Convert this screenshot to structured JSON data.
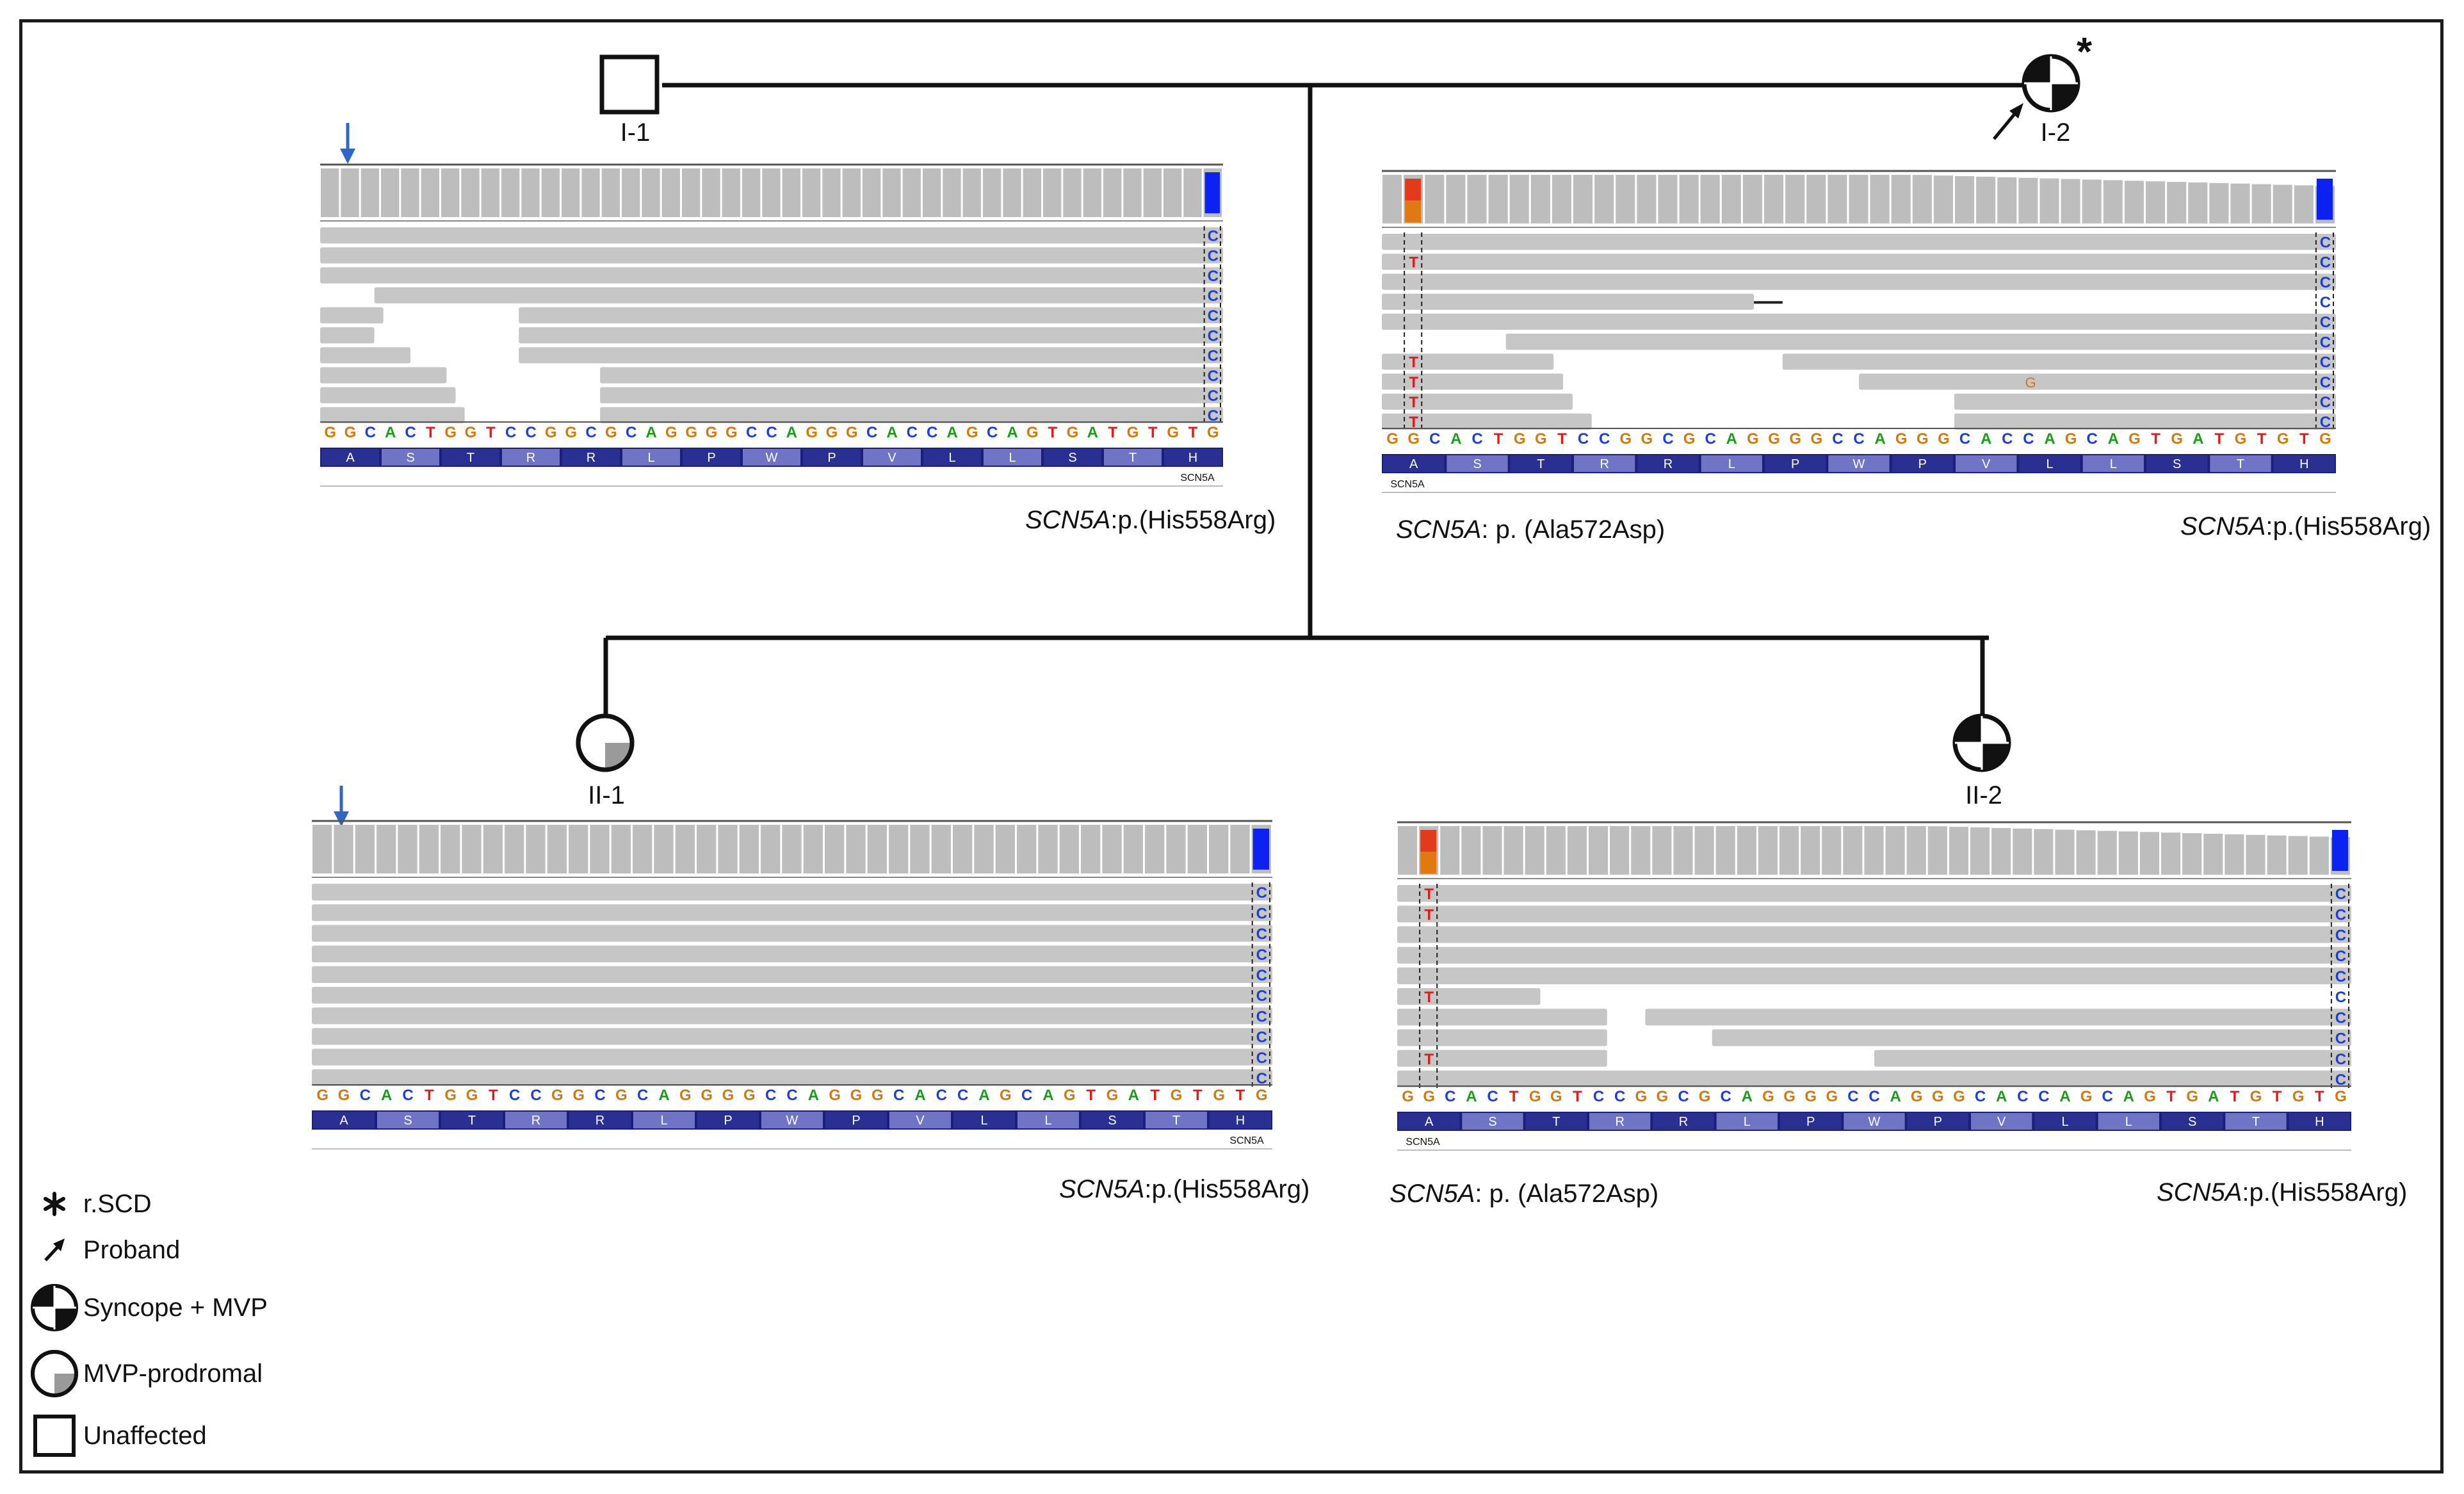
{
  "pedigree": {
    "individuals": [
      {
        "id": "I-1",
        "label": "I-1",
        "sex": "male",
        "status": "unaffected"
      },
      {
        "id": "I-2",
        "label": "I-2",
        "sex": "female",
        "status": "syncope-mvp",
        "proband": true,
        "rscd": true
      },
      {
        "id": "II-1",
        "label": "II-1",
        "sex": "female",
        "status": "mvp-prodromal"
      },
      {
        "id": "II-2",
        "label": "II-2",
        "sex": "female",
        "status": "syncope-mvp"
      }
    ],
    "asterisk_mark": "*"
  },
  "igv": {
    "reference_bases": "GGCACTGGTCCGGCGCAGGGGCCAGGGCACCAGCAGTGATGTGTG",
    "amino_acids": [
      "A",
      "S",
      "T",
      "R",
      "R",
      "L",
      "P",
      "W",
      "P",
      "V",
      "L",
      "L",
      "S",
      "T",
      "H"
    ],
    "gene_label": "SCN5A",
    "base_colors": {
      "A": "#1a9e1a",
      "C": "#1d3fd6",
      "G": "#d07a12",
      "T": "#e01b1b"
    },
    "panels": [
      {
        "id": "I-1",
        "variants": [
          {
            "gene": "SCN5A",
            "text": ":p.(His558Arg)"
          }
        ],
        "mutant_base": "C",
        "ala_variant": false,
        "gene_label_side": "right",
        "marker_arrow": true
      },
      {
        "id": "I-2",
        "variants": [
          {
            "gene": "SCN5A",
            "text": ": p. (Ala572Asp)"
          },
          {
            "gene": "SCN5A",
            "text": ":p.(His558Arg)"
          }
        ],
        "mutant_base": "C",
        "ala_base": "T",
        "extra_base": "G",
        "ala_variant": true,
        "gene_label_side": "left",
        "marker_arrow": false
      },
      {
        "id": "II-1",
        "variants": [
          {
            "gene": "SCN5A",
            "text": ":p.(His558Arg)"
          }
        ],
        "mutant_base": "C",
        "ala_variant": false,
        "gene_label_side": "right",
        "marker_arrow": true
      },
      {
        "id": "II-2",
        "variants": [
          {
            "gene": "SCN5A",
            "text": ": p. (Ala572Asp)"
          },
          {
            "gene": "SCN5A",
            "text": ":p.(His558Arg)"
          }
        ],
        "mutant_base": "C",
        "ala_base": "T",
        "ala_variant": true,
        "gene_label_side": "left",
        "marker_arrow": false
      }
    ]
  },
  "legend": {
    "items": [
      {
        "symbol": "asterisk",
        "label": "r.SCD"
      },
      {
        "symbol": "arrow",
        "label": "Proband"
      },
      {
        "symbol": "circle-quarters",
        "label": "Syncope + MVP"
      },
      {
        "symbol": "circle-prodromal",
        "label": "MVP-prodromal"
      },
      {
        "symbol": "square",
        "label": "Unaffected"
      }
    ]
  }
}
